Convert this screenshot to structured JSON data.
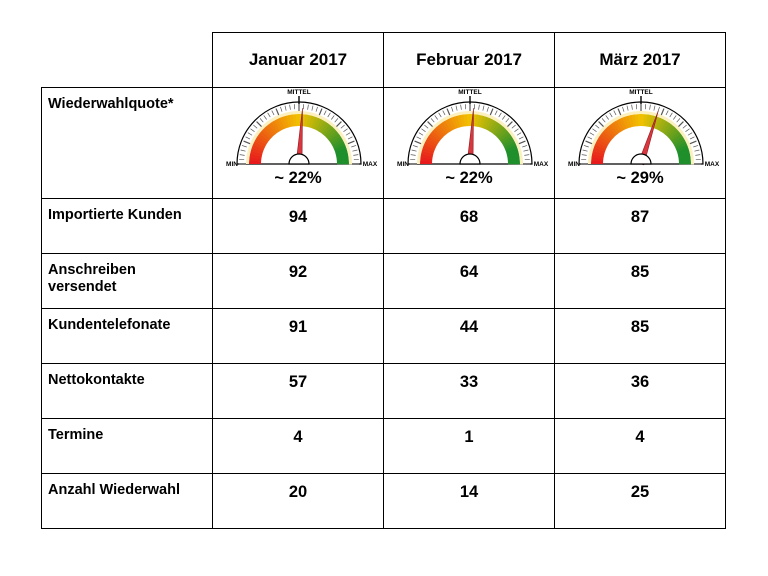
{
  "columns": [
    "Januar 2017",
    "Februar 2017",
    "März 2017"
  ],
  "gauge": {
    "row_label": "Wiederwahlquote*",
    "min_label": "MIN",
    "mid_label": "MITTEL",
    "max_label": "MAX",
    "display": [
      "~ 22%",
      "~ 22%",
      "~ 29%"
    ],
    "needle_fraction": [
      0.52,
      0.52,
      0.6
    ],
    "colors": {
      "red": "#e8161d",
      "yellow": "#f2c200",
      "green": "#1f8f2b",
      "needle": "#d9363e"
    }
  },
  "rows": [
    {
      "label": "Importierte Kunden",
      "values": [
        "94",
        "68",
        "87"
      ]
    },
    {
      "label": "Anschreiben versendet",
      "values": [
        "92",
        "64",
        "85"
      ]
    },
    {
      "label": "Kundentelefonate",
      "values": [
        "91",
        "44",
        "85"
      ]
    },
    {
      "label": "Nettokontakte",
      "values": [
        "57",
        "33",
        "36"
      ]
    },
    {
      "label": "Termine",
      "values": [
        "4",
        "1",
        "4"
      ]
    },
    {
      "label": "Anzahl Wiederwahl",
      "values": [
        "20",
        "14",
        "25"
      ]
    }
  ]
}
